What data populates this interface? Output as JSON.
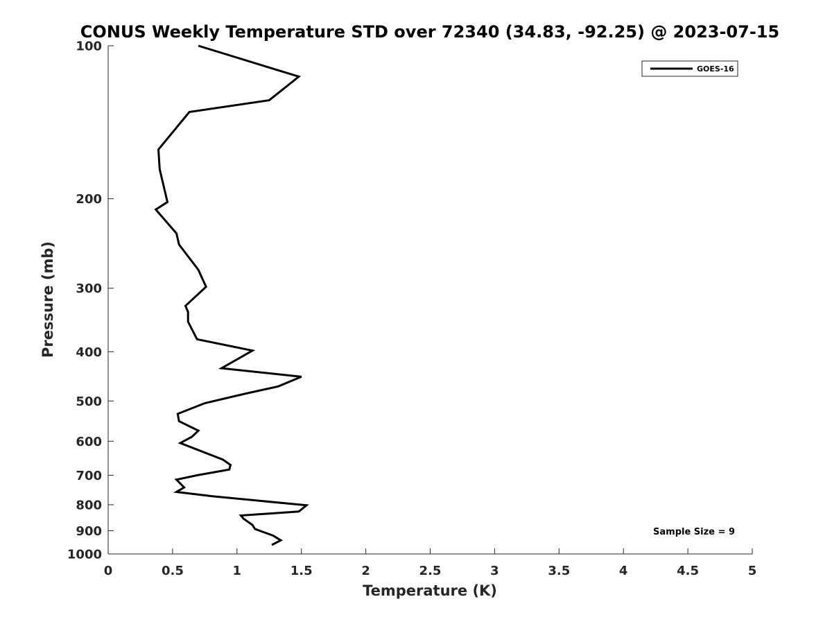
{
  "chart_data": {
    "type": "line",
    "title": "CONUS Weekly Temperature STD over 72340 (34.83, -92.25) @ 2023-07-15",
    "xlabel": "Temperature (K)",
    "ylabel": "Pressure (mb)",
    "xlim": [
      0,
      5
    ],
    "ylim": [
      1000,
      100
    ],
    "yscale": "log",
    "y_reversed": true,
    "xticks": [
      0,
      0.5,
      1,
      1.5,
      2,
      2.5,
      3,
      3.5,
      4,
      4.5,
      5
    ],
    "xtick_labels": [
      "0",
      "0.5",
      "1",
      "1.5",
      "2",
      "2.5",
      "3",
      "3.5",
      "4",
      "4.5",
      "5"
    ],
    "yticks": [
      100,
      200,
      300,
      400,
      500,
      600,
      700,
      800,
      900,
      1000
    ],
    "ytick_labels": [
      "100",
      "200",
      "300",
      "400",
      "500",
      "600",
      "700",
      "800",
      "900",
      "1000"
    ],
    "grid": false,
    "legend_position": "top-right",
    "annotation": "Sample Size = 9",
    "series": [
      {
        "name": "GOES-16",
        "color": "#000000",
        "x": [
          0.7,
          1.48,
          1.25,
          0.63,
          0.39,
          0.4,
          0.46,
          0.37,
          0.53,
          0.55,
          0.7,
          0.76,
          0.6,
          0.62,
          0.62,
          0.69,
          1.12,
          0.88,
          1.5,
          1.32,
          1.06,
          0.75,
          0.54,
          0.55,
          0.7,
          0.65,
          0.56,
          0.89,
          0.95,
          0.94,
          0.69,
          0.53,
          0.59,
          0.53,
          0.81,
          1.54,
          1.48,
          1.03,
          1.05,
          1.12,
          1.14,
          1.28,
          1.34,
          1.27
        ],
        "y": [
          100,
          115,
          128,
          135,
          160,
          175,
          203,
          210,
          234,
          246,
          276,
          298,
          325,
          334,
          349,
          378,
          398,
          431,
          448,
          468,
          484,
          505,
          530,
          548,
          572,
          588,
          605,
          652,
          668,
          682,
          700,
          714,
          740,
          755,
          770,
          802,
          825,
          840,
          852,
          877,
          893,
          920,
          940,
          960
        ]
      }
    ]
  }
}
